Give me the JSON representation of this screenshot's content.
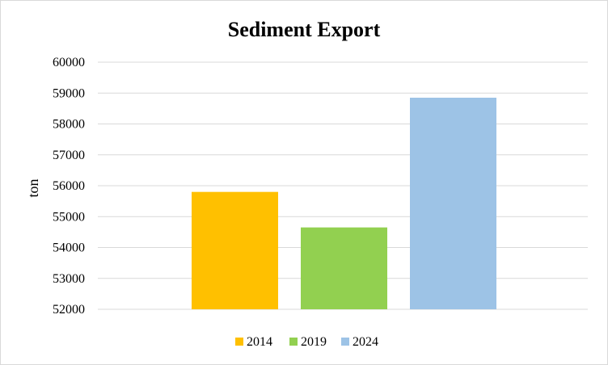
{
  "chart_data": {
    "type": "bar",
    "title": "Sediment Export",
    "xlabel": "",
    "ylabel": "ton",
    "ylim": [
      52000,
      60000
    ],
    "yticks": [
      52000,
      53000,
      54000,
      55000,
      56000,
      57000,
      58000,
      59000,
      60000
    ],
    "grid": true,
    "legend_position": "bottom",
    "series": [
      {
        "name": "2014",
        "values": [
          55800
        ],
        "color": "#FFC000"
      },
      {
        "name": "2019",
        "values": [
          54650
        ],
        "color": "#92D050"
      },
      {
        "name": "2024",
        "values": [
          58850
        ],
        "color": "#9DC3E6"
      }
    ]
  }
}
